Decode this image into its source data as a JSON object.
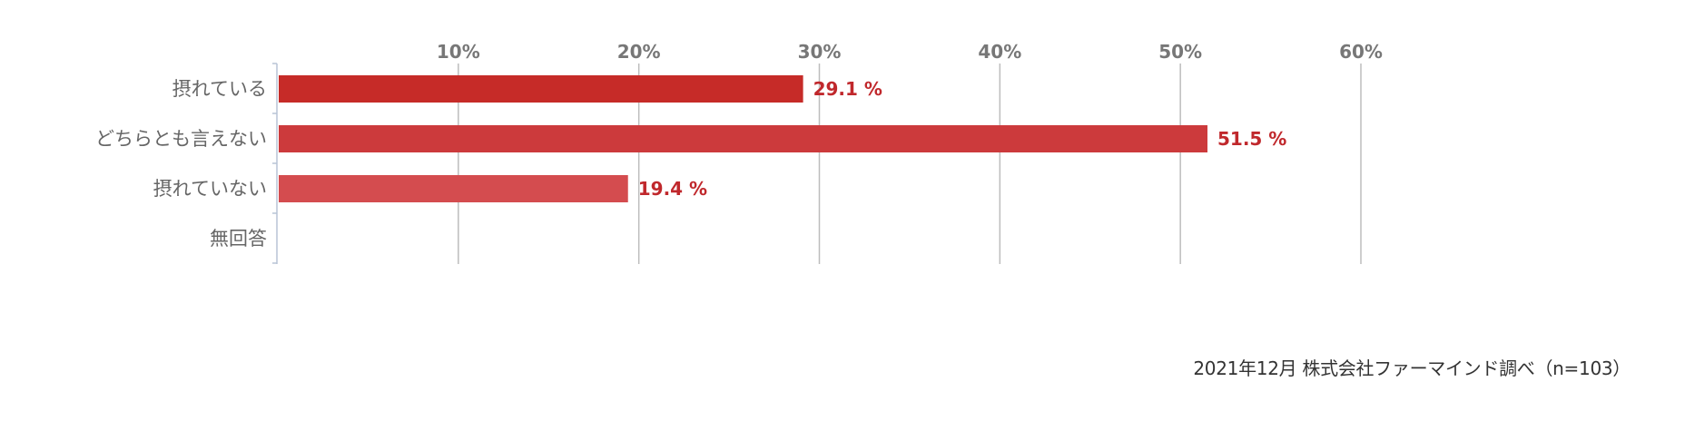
{
  "chart_data": {
    "type": "bar",
    "orientation": "horizontal",
    "categories": [
      "摂れている",
      "どちらとも言えない",
      "摂れていない",
      "無回答"
    ],
    "values": [
      29.1,
      51.5,
      19.4,
      0
    ],
    "value_labels": [
      "29.1 %",
      "51.5 %",
      "19.4 %",
      ""
    ],
    "bar_colors": [
      "#c62b28",
      "#cc3a3c",
      "#d44c4f",
      "#d44c4f"
    ],
    "value_label_color": "#c0282c",
    "xlim": [
      0,
      60
    ],
    "x_ticks": [
      10,
      20,
      30,
      40,
      50,
      60
    ],
    "x_tick_labels": [
      "10%",
      "20%",
      "30%",
      "40%",
      "50%",
      "60%"
    ],
    "x_axis_position": "top",
    "grid": true
  },
  "source_note": "2021年12月 株式会社ファーマインド調べ（n=103）"
}
